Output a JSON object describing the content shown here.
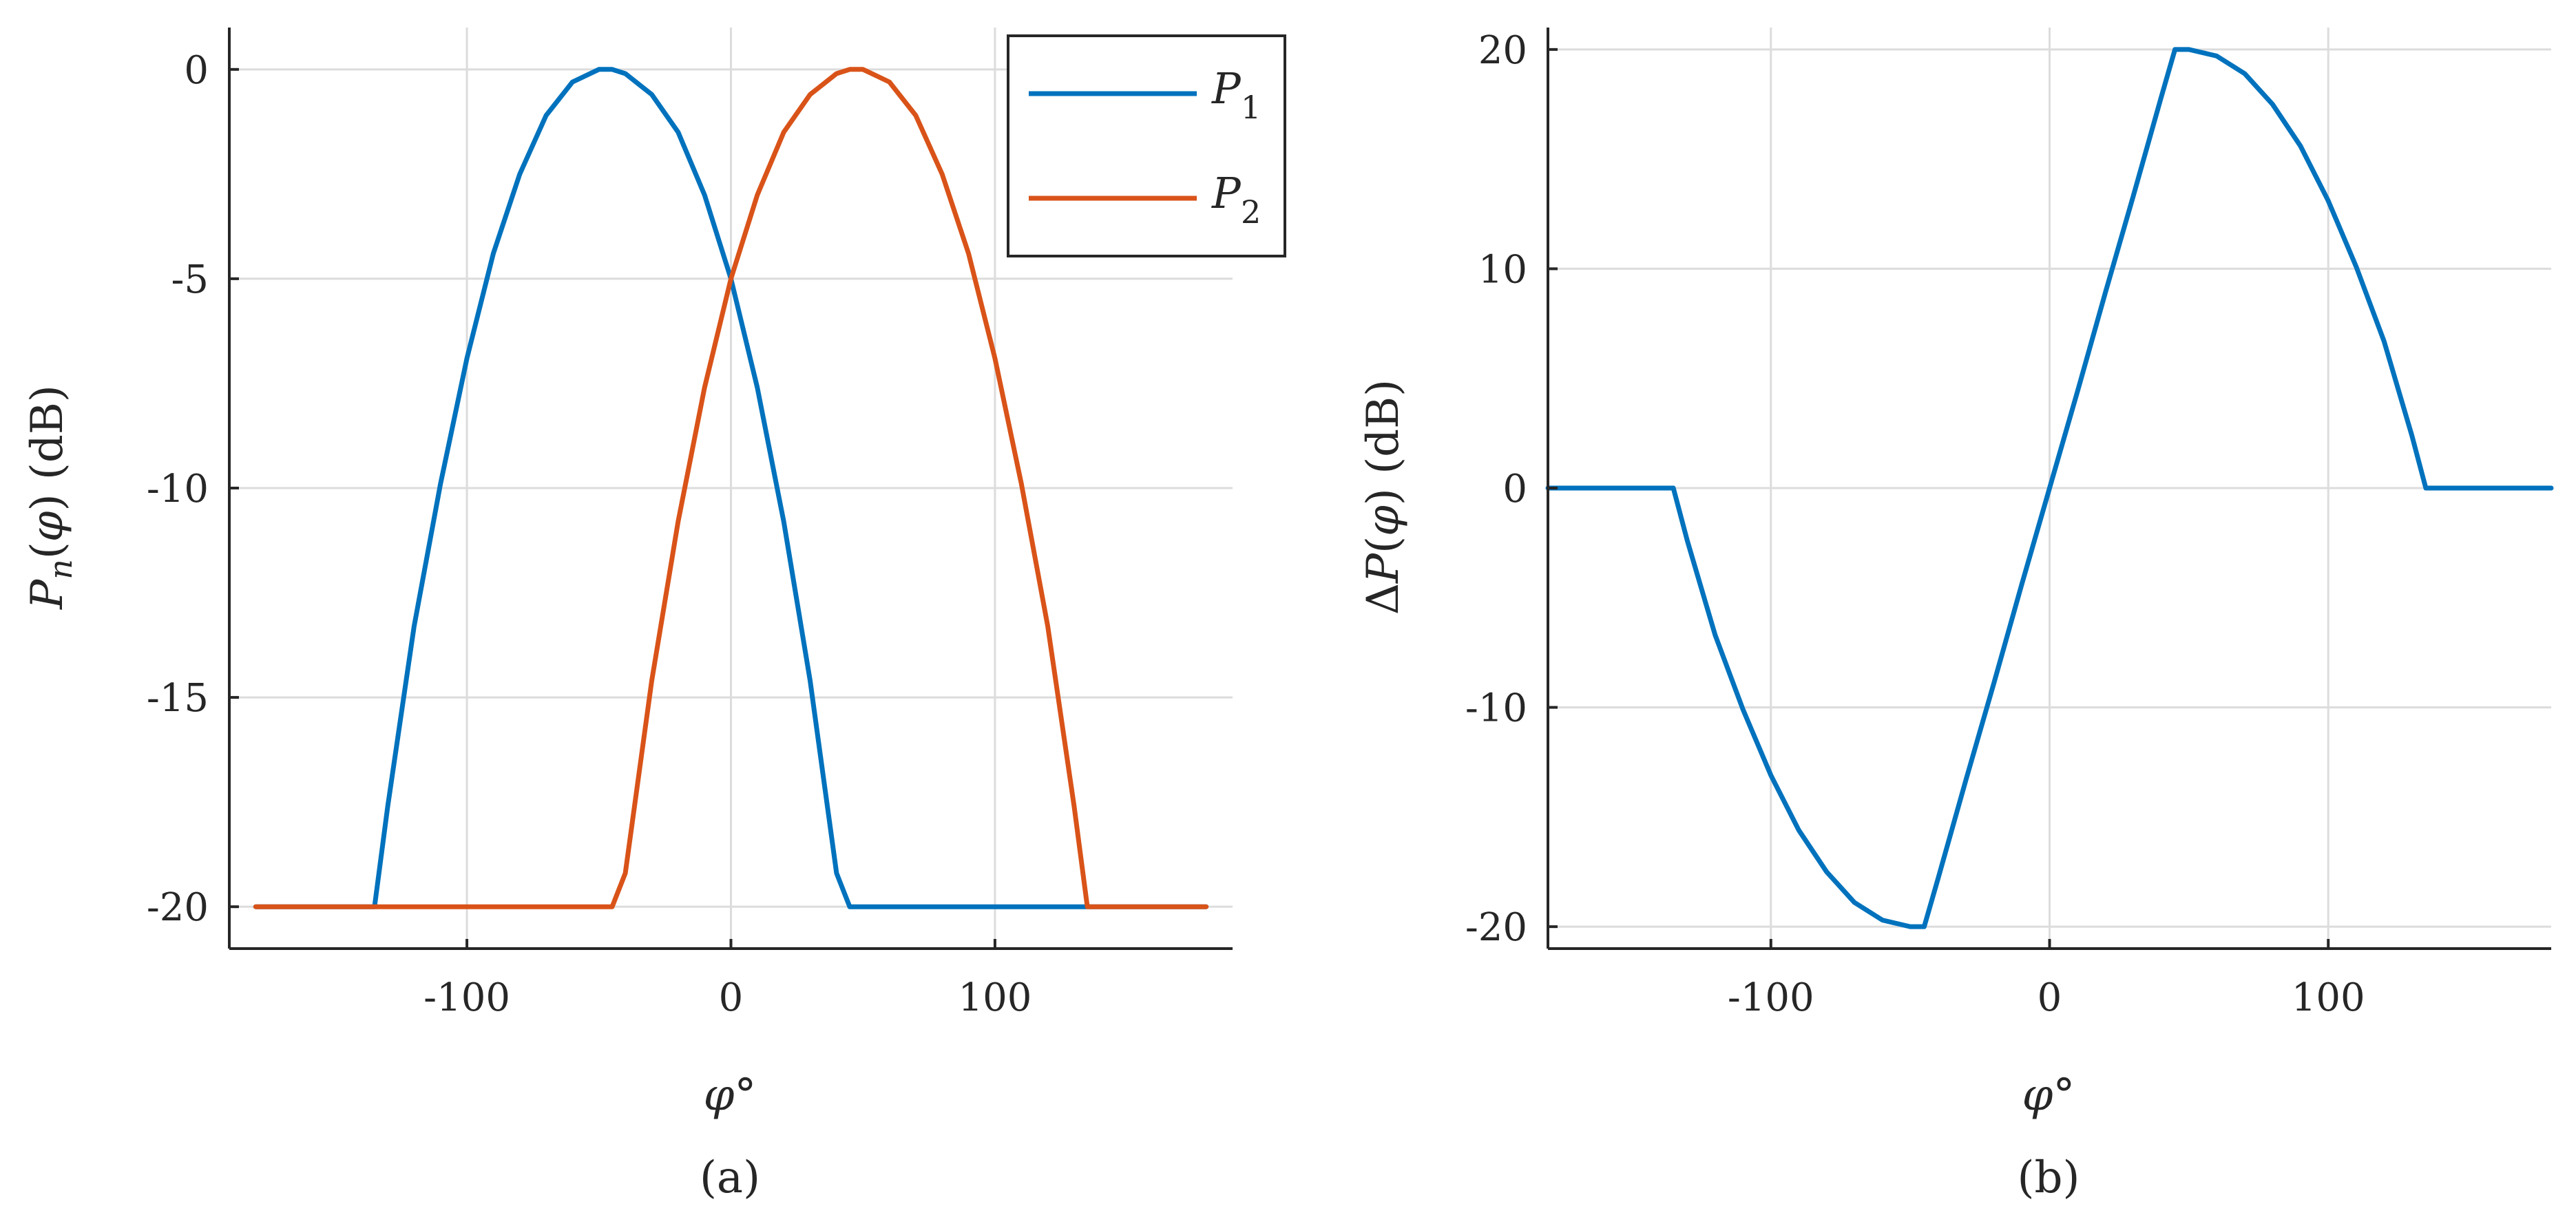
{
  "chart_data": [
    {
      "id": "a",
      "type": "line",
      "panel_label": "(a)",
      "xlabel": "φ°",
      "ylabel": "P_n(φ) (dB)",
      "xlim": [
        -190,
        190
      ],
      "ylim": [
        -21,
        1
      ],
      "xticks": [
        -100,
        0,
        100
      ],
      "yticks": [
        0,
        -5,
        -10,
        -15,
        -20
      ],
      "grid": true,
      "legend": "top-right",
      "series": [
        {
          "name": "P_1",
          "color": "#0072BD",
          "x": [
            -180,
            -135,
            -130,
            -120,
            -110,
            -100,
            -90,
            -80,
            -70,
            -60,
            -50,
            -45,
            -40,
            -30,
            -20,
            -10,
            0,
            10,
            20,
            30,
            40,
            45,
            50,
            60,
            70,
            80,
            90,
            100,
            110,
            120,
            130,
            135,
            180
          ],
          "y": [
            -20,
            -20,
            -17.6,
            -13.3,
            -9.9,
            -6.9,
            -4.4,
            -2.5,
            -1.1,
            -0.3,
            0.0,
            0.0,
            -0.1,
            -0.6,
            -1.5,
            -3.0,
            -5.0,
            -7.6,
            -10.8,
            -14.6,
            -19.2,
            -20,
            -20,
            -20,
            -20,
            -20,
            -20,
            -20,
            -20,
            -20,
            -20,
            -20,
            -20
          ]
        },
        {
          "name": "P_2",
          "color": "#D95319",
          "x": [
            -180,
            -135,
            -130,
            -120,
            -110,
            -100,
            -90,
            -80,
            -70,
            -60,
            -50,
            -45,
            -40,
            -30,
            -20,
            -10,
            0,
            10,
            20,
            30,
            40,
            45,
            50,
            60,
            70,
            80,
            90,
            100,
            110,
            120,
            130,
            135,
            180
          ],
          "y": [
            -20,
            -20,
            -20,
            -20,
            -20,
            -20,
            -20,
            -20,
            -20,
            -20,
            -20,
            -20,
            -19.2,
            -14.6,
            -10.8,
            -7.6,
            -5.0,
            -3.0,
            -1.5,
            -0.6,
            -0.1,
            0.0,
            0.0,
            -0.3,
            -1.1,
            -2.5,
            -4.4,
            -6.9,
            -9.9,
            -13.3,
            -17.6,
            -20,
            -20
          ]
        }
      ]
    },
    {
      "id": "b",
      "type": "line",
      "panel_label": "(b)",
      "xlabel": "φ°",
      "ylabel": "ΔP(φ) (dB)",
      "xlim": [
        -180,
        180
      ],
      "ylim": [
        -21,
        21
      ],
      "xticks": [
        -100,
        0,
        100
      ],
      "yticks": [
        20,
        10,
        0,
        -10,
        -20
      ],
      "grid": true,
      "series": [
        {
          "color": "#0072BD",
          "x": [
            -180,
            -135,
            -130,
            -120,
            -110,
            -100,
            -90,
            -80,
            -70,
            -60,
            -50,
            -45,
            -40,
            -30,
            -20,
            -10,
            0,
            10,
            20,
            30,
            40,
            45,
            50,
            60,
            70,
            80,
            90,
            100,
            110,
            120,
            130,
            135,
            180
          ],
          "y": [
            0,
            0,
            -2.4,
            -6.7,
            -10.1,
            -13.1,
            -15.6,
            -17.5,
            -18.9,
            -19.7,
            -20.0,
            -20.0,
            -17.8,
            -13.3,
            -8.9,
            -4.4,
            0,
            4.4,
            8.9,
            13.3,
            17.8,
            20.0,
            20.0,
            19.7,
            18.9,
            17.5,
            15.6,
            13.1,
            10.1,
            6.7,
            2.4,
            0,
            0
          ]
        }
      ]
    }
  ]
}
